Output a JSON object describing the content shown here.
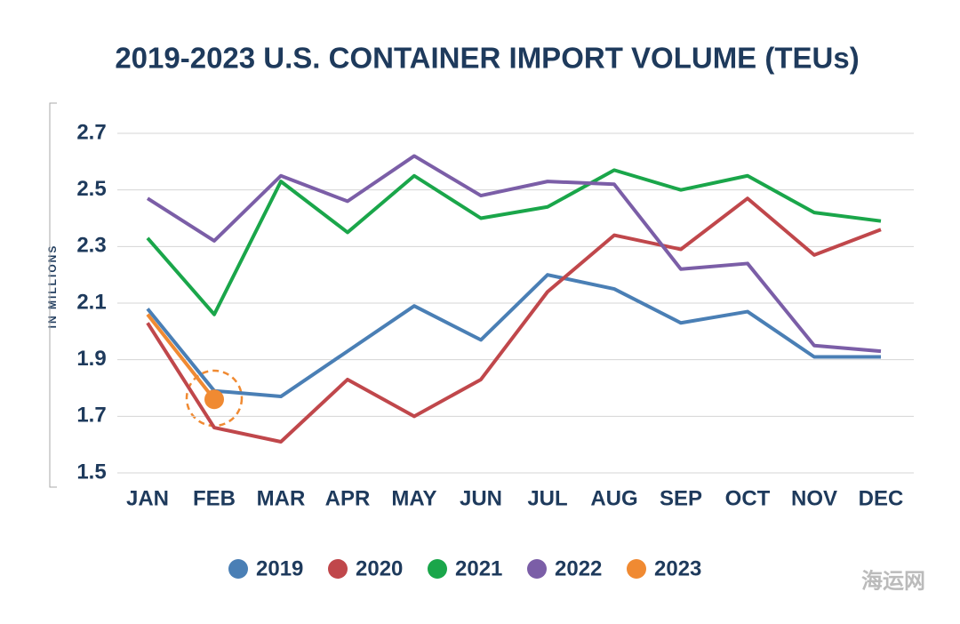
{
  "chart_data": {
    "type": "line",
    "title": "2019-2023 U.S. CONTAINER IMPORT VOLUME (TEUs)",
    "y_label": "IN MILLIONS",
    "watermark": "海运网",
    "categories": [
      "JAN",
      "FEB",
      "MAR",
      "APR",
      "MAY",
      "JUN",
      "JUL",
      "AUG",
      "SEP",
      "OCT",
      "NOV",
      "DEC"
    ],
    "series": [
      {
        "name": "2019",
        "color": "#4a7fb5",
        "values": [
          2.08,
          1.79,
          1.77,
          1.93,
          2.09,
          1.97,
          2.2,
          2.15,
          2.03,
          2.07,
          1.91,
          1.91
        ]
      },
      {
        "name": "2020",
        "color": "#c0474b",
        "values": [
          2.03,
          1.66,
          1.61,
          1.83,
          1.7,
          1.83,
          2.14,
          2.34,
          2.29,
          2.47,
          2.27,
          2.36
        ]
      },
      {
        "name": "2021",
        "color": "#1aa64a",
        "values": [
          2.33,
          2.06,
          2.53,
          2.35,
          2.55,
          2.4,
          2.44,
          2.57,
          2.5,
          2.55,
          2.42,
          2.39
        ]
      },
      {
        "name": "2022",
        "color": "#7b5ea7",
        "values": [
          2.47,
          2.32,
          2.55,
          2.46,
          2.62,
          2.48,
          2.53,
          2.52,
          2.22,
          2.24,
          1.95,
          1.93
        ]
      },
      {
        "name": "2023",
        "color": "#f08a32",
        "values": [
          2.06,
          1.76,
          null,
          null,
          null,
          null,
          null,
          null,
          null,
          null,
          null,
          null
        ]
      }
    ],
    "ylim": [
      1.5,
      2.7
    ],
    "yticks": [
      1.5,
      1.7,
      1.9,
      2.1,
      2.3,
      2.5,
      2.7
    ],
    "grid": true
  }
}
